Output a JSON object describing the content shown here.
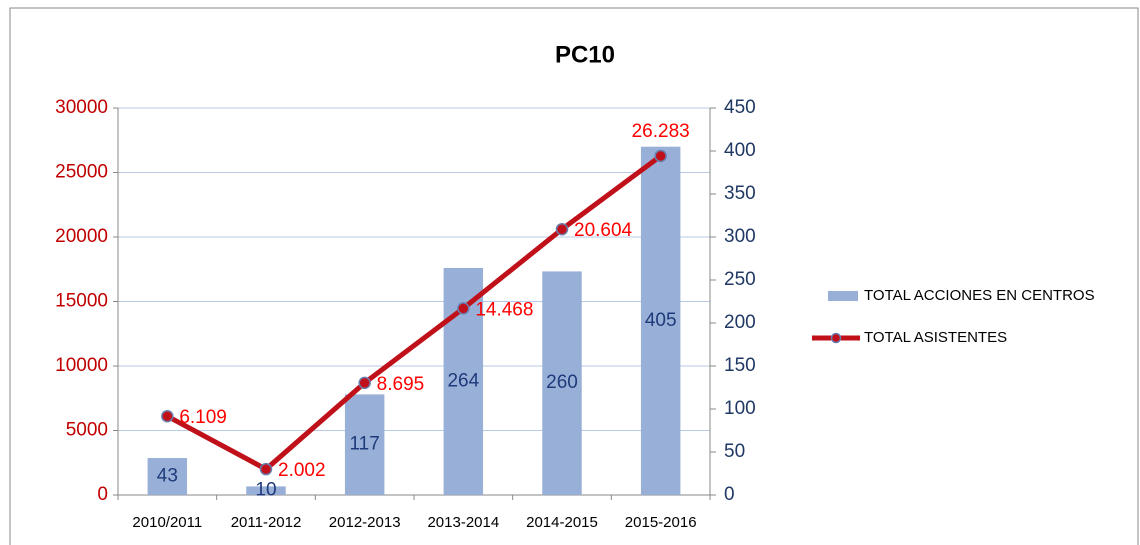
{
  "chart_data": {
    "type": "combo",
    "title": "PC10",
    "categories": [
      "2010/2011",
      "2011-2012",
      "2012-2013",
      "2013-2014",
      "2014-2015",
      "2015-2016"
    ],
    "series": [
      {
        "name": "TOTAL ACCIONES EN CENTROS",
        "type": "bar",
        "axis": "y2",
        "color": "#98b0d8",
        "values": [
          43,
          10,
          117,
          264,
          260,
          405
        ]
      },
      {
        "name": "TOTAL ASISTENTES",
        "type": "line",
        "color": "#c0111a",
        "values": [
          6109,
          2002,
          8695,
          14468,
          20604,
          26283
        ],
        "value_labels": [
          "6.109",
          "2.002",
          "8.695",
          "14.468",
          "20.604",
          "26.283"
        ]
      }
    ],
    "ylim": [
      0,
      30000
    ],
    "yticks": [
      0,
      5000,
      10000,
      15000,
      20000,
      25000,
      30000
    ],
    "y2lim": [
      0,
      450
    ],
    "y2ticks": [
      0,
      50,
      100,
      150,
      200,
      250,
      300,
      350,
      400,
      450
    ],
    "grid": true,
    "legend": "right"
  }
}
